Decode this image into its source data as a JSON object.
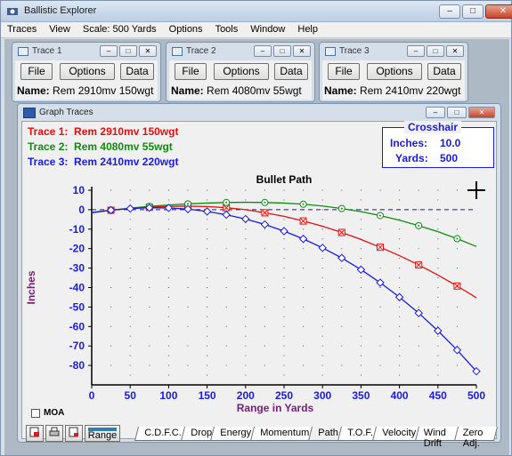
{
  "app": {
    "title": "Ballistic Explorer",
    "minimize": "–",
    "maximize": "□",
    "close": "✕"
  },
  "menu": {
    "items": [
      {
        "label": "Traces",
        "ul": "T"
      },
      {
        "label": "View",
        "ul": "V"
      },
      {
        "label": "Scale: 500 Yards",
        "ul": "S"
      },
      {
        "label": "Options",
        "ul": "O"
      },
      {
        "label": "Tools",
        "ul": ""
      },
      {
        "label": "Window",
        "ul": "W"
      },
      {
        "label": "Help",
        "ul": "H"
      }
    ]
  },
  "trace_windows": [
    {
      "title": "Trace 1",
      "file": "File",
      "options": "Options",
      "data": "Data",
      "name_label": "Name:",
      "name_value": "Rem  2910mv 150wgt"
    },
    {
      "title": "Trace 2",
      "file": "File",
      "options": "Options",
      "data": "Data",
      "name_label": "Name:",
      "name_value": "Rem  4080mv 55wgt"
    },
    {
      "title": "Trace 3",
      "file": "File",
      "options": "Options",
      "data": "Data",
      "name_label": "Name:",
      "name_value": "Rem  2410mv 220wgt"
    }
  ],
  "graph": {
    "title": "Graph Traces",
    "legend": [
      {
        "label": "Trace 1:",
        "text": "Rem  2910mv 150wgt",
        "color": "#e01010"
      },
      {
        "label": "Trace 2:",
        "text": "Rem  4080mv 55wgt",
        "color": "#118a11"
      },
      {
        "label": "Trace 3:",
        "text": "Rem  2410mv 220wgt",
        "color": "#1a1ae0"
      }
    ],
    "crosshair": {
      "title": "Crosshair",
      "inches_label": "Inches:",
      "inches_value": "10.0",
      "yards_label": "Yards:",
      "yards_value": "500"
    },
    "moa_label": "MOA",
    "range_label": "Range",
    "tabs": [
      "C.D.F.C.",
      "Drop",
      "Energy",
      "Momentum",
      "Path",
      "T.O.F.",
      "Velocity",
      "Wind Drift",
      "Zero Adj."
    ],
    "active_tab": "Path"
  },
  "chart_data": {
    "type": "line",
    "title": "Bullet Path",
    "xlabel": "Range in Yards",
    "ylabel": "Inches",
    "xlim": [
      0,
      500
    ],
    "ylim": [
      -90,
      10
    ],
    "xticks": [
      0,
      50,
      100,
      150,
      200,
      250,
      300,
      350,
      400,
      450,
      500
    ],
    "yticks": [
      10,
      0,
      -10,
      -20,
      -30,
      -40,
      -50,
      -60,
      -70,
      -80
    ],
    "grid": "dotted",
    "zero_line": "dashed",
    "series": [
      {
        "name": "Trace 1",
        "color": "#e01010",
        "marker": "square-x",
        "x": [
          0,
          25,
          50,
          75,
          100,
          125,
          150,
          175,
          200,
          225,
          250,
          275,
          300,
          325,
          350,
          375,
          400,
          425,
          450,
          475,
          500
        ],
        "y": [
          -1.5,
          -0.3,
          0.6,
          1.3,
          1.7,
          1.8,
          1.6,
          1.0,
          0,
          -1.6,
          -3.4,
          -5.8,
          -8.5,
          -11.7,
          -15.3,
          -19.3,
          -23.6,
          -28.4,
          -33.6,
          -39.2,
          -45.2
        ]
      },
      {
        "name": "Trace 2",
        "color": "#118a11",
        "marker": "circle-dot",
        "x": [
          0,
          25,
          50,
          75,
          100,
          125,
          150,
          175,
          200,
          225,
          250,
          275,
          300,
          325,
          350,
          375,
          400,
          425,
          450,
          475,
          500
        ],
        "y": [
          -1.5,
          -0.3,
          0.8,
          1.7,
          2.4,
          3.0,
          3.4,
          3.7,
          3.8,
          3.7,
          3.4,
          2.8,
          1.9,
          0.6,
          -1.0,
          -3.0,
          -5.4,
          -8.2,
          -11.3,
          -14.9,
          -18.9
        ]
      },
      {
        "name": "Trace 3",
        "color": "#1a1ae0",
        "marker": "diamond",
        "x": [
          0,
          25,
          50,
          75,
          100,
          125,
          150,
          175,
          200,
          225,
          250,
          275,
          300,
          325,
          350,
          375,
          400,
          425,
          450,
          475,
          500
        ],
        "y": [
          -1.5,
          -0.2,
          0.6,
          1.0,
          0.9,
          0.3,
          -0.9,
          -2.6,
          -4.8,
          -7.6,
          -11.0,
          -15.0,
          -19.6,
          -24.8,
          -30.8,
          -37.5,
          -44.9,
          -53.1,
          -62.2,
          -72.1,
          -83.0
        ]
      }
    ]
  }
}
